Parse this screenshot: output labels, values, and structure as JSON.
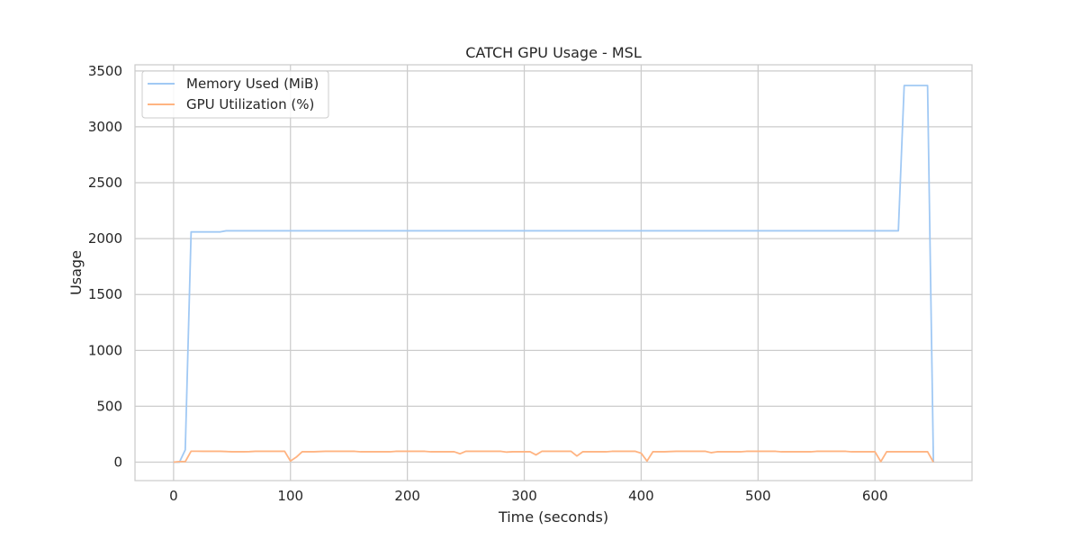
{
  "chart_data": {
    "type": "line",
    "title": "CATCH GPU Usage - MSL",
    "xlabel": "Time (seconds)",
    "ylabel": "Usage",
    "xlim": [
      -33,
      683
    ],
    "ylim": [
      -165,
      3555
    ],
    "xticks": [
      0,
      100,
      200,
      300,
      400,
      500,
      600
    ],
    "yticks": [
      0,
      500,
      1000,
      1500,
      2000,
      2500,
      3000,
      3500
    ],
    "grid": true,
    "legend": "upper left",
    "series": [
      {
        "name": "Memory Used (MiB)",
        "color": "#a1c9f4",
        "x": [
          0,
          5,
          10,
          15,
          20,
          25,
          30,
          35,
          40,
          45,
          50,
          100,
          150,
          200,
          250,
          300,
          350,
          400,
          450,
          500,
          550,
          600,
          605,
          610,
          615,
          620,
          625,
          630,
          635,
          640,
          645,
          650
        ],
        "y": [
          0,
          0,
          110,
          2060,
          2060,
          2060,
          2060,
          2060,
          2060,
          2070,
          2070,
          2070,
          2070,
          2070,
          2070,
          2070,
          2070,
          2070,
          2070,
          2070,
          2070,
          2070,
          2070,
          2070,
          2070,
          2070,
          3370,
          3370,
          3370,
          3370,
          3370,
          0
        ]
      },
      {
        "name": "GPU Utilization (%)",
        "color": "#ffb482",
        "x": [
          0,
          5,
          10,
          15,
          20,
          25,
          30,
          35,
          40,
          45,
          50,
          55,
          60,
          65,
          70,
          75,
          80,
          85,
          90,
          95,
          100,
          105,
          110,
          115,
          120,
          125,
          130,
          135,
          140,
          145,
          150,
          155,
          160,
          165,
          170,
          175,
          180,
          185,
          190,
          195,
          200,
          205,
          210,
          215,
          220,
          225,
          230,
          235,
          240,
          245,
          250,
          255,
          260,
          265,
          270,
          275,
          280,
          285,
          290,
          295,
          300,
          305,
          310,
          315,
          320,
          325,
          330,
          335,
          340,
          345,
          350,
          355,
          360,
          365,
          370,
          375,
          380,
          385,
          390,
          395,
          400,
          405,
          410,
          415,
          420,
          425,
          430,
          435,
          440,
          445,
          450,
          455,
          460,
          465,
          470,
          475,
          480,
          485,
          490,
          495,
          500,
          505,
          510,
          515,
          520,
          525,
          530,
          535,
          540,
          545,
          550,
          555,
          560,
          565,
          570,
          575,
          580,
          585,
          590,
          595,
          600,
          605,
          610,
          615,
          620,
          625,
          630,
          635,
          640,
          645,
          650
        ],
        "y": [
          0,
          5,
          5,
          98,
          98,
          97,
          97,
          97,
          97,
          95,
          93,
          93,
          93,
          94,
          97,
          97,
          97,
          97,
          97,
          97,
          10,
          45,
          93,
          93,
          93,
          95,
          97,
          97,
          97,
          97,
          97,
          97,
          93,
          93,
          93,
          93,
          93,
          93,
          97,
          97,
          97,
          97,
          97,
          97,
          93,
          93,
          93,
          93,
          93,
          75,
          97,
          97,
          97,
          97,
          97,
          97,
          97,
          90,
          93,
          93,
          93,
          93,
          65,
          97,
          97,
          97,
          97,
          97,
          97,
          55,
          93,
          93,
          93,
          93,
          93,
          97,
          97,
          97,
          97,
          97,
          80,
          10,
          93,
          93,
          93,
          95,
          97,
          97,
          97,
          97,
          97,
          97,
          85,
          93,
          93,
          93,
          93,
          93,
          97,
          97,
          97,
          97,
          97,
          97,
          93,
          93,
          93,
          93,
          93,
          93,
          97,
          97,
          97,
          97,
          97,
          97,
          93,
          93,
          93,
          93,
          93,
          5,
          93,
          93,
          93,
          93,
          93,
          93,
          93,
          93,
          0
        ]
      }
    ]
  }
}
